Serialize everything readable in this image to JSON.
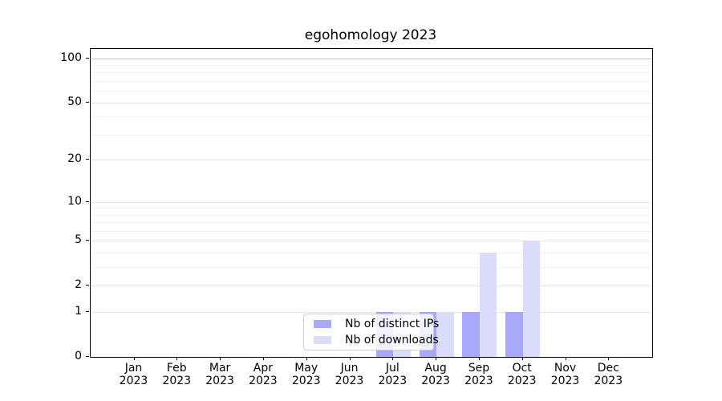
{
  "title": "egohomology 2023",
  "axes": {
    "y_tick_labels": [
      "0",
      "1",
      "2",
      "5",
      "10",
      "20",
      "50",
      "100"
    ],
    "x_tick_year": "2023"
  },
  "legend": {
    "items": [
      {
        "label": "Nb of distinct IPs",
        "color": "#a8a8f8"
      },
      {
        "label": "Nb of downloads",
        "color": "#dbdbfa"
      }
    ]
  },
  "chart_data": {
    "type": "bar",
    "title": "egohomology 2023",
    "categories": [
      "Jan",
      "Feb",
      "Mar",
      "Apr",
      "May",
      "Jun",
      "Jul",
      "Aug",
      "Sep",
      "Oct",
      "Nov",
      "Dec"
    ],
    "xtick_year": "2023",
    "series": [
      {
        "name": "Nb of distinct IPs",
        "color": "#a8a8f8",
        "values": [
          0,
          0,
          0,
          0,
          0,
          0,
          1,
          1,
          1,
          1,
          0,
          0
        ]
      },
      {
        "name": "Nb of downloads",
        "color": "#dbdbfa",
        "values": [
          0,
          0,
          0,
          0,
          0,
          0,
          1,
          1,
          4,
          5,
          0,
          0
        ]
      }
    ],
    "xlabel": "",
    "ylabel": "",
    "yscale": "log10(1+v)",
    "yticks": [
      0,
      1,
      2,
      5,
      10,
      20,
      50,
      100
    ],
    "yticks_minor": [
      3,
      4,
      6,
      7,
      8,
      9,
      30,
      40,
      60,
      70,
      80,
      90
    ],
    "ylim": [
      0,
      115
    ],
    "grid": "horizontal",
    "legend_position": "inside-lower-center"
  }
}
